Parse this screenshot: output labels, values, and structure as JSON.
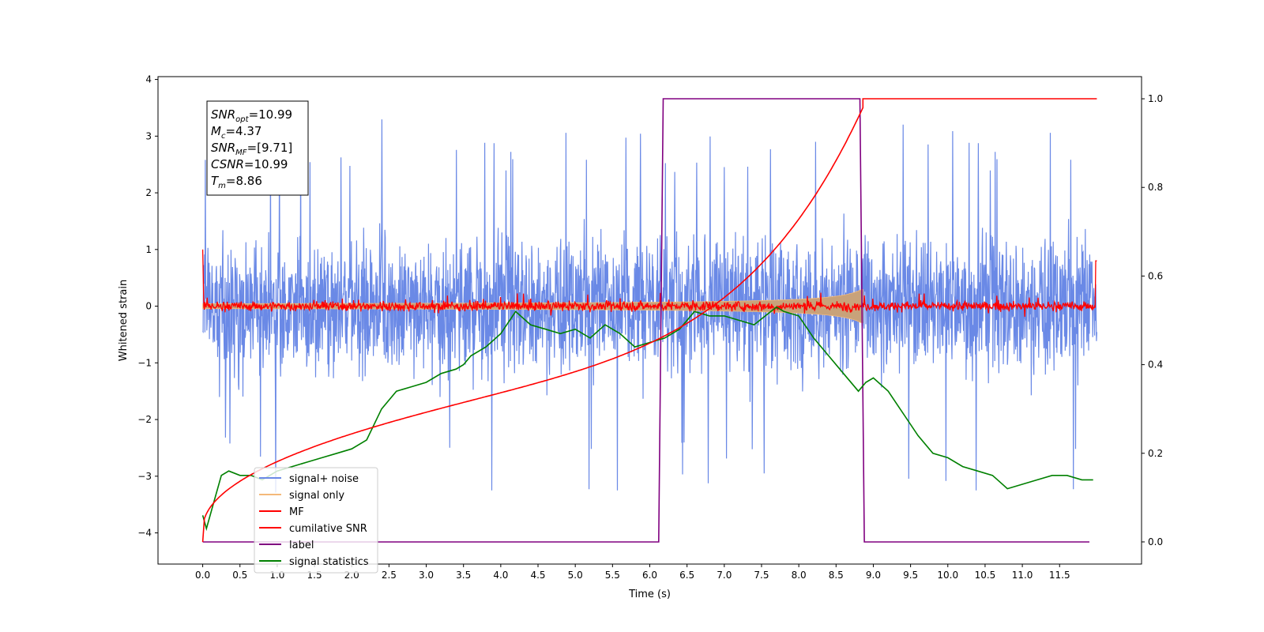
{
  "chart_data": {
    "type": "line",
    "xlabel": "Time (s)",
    "ylabel": "Whitened strain",
    "xlim": [
      -0.6,
      12.6
    ],
    "ylim": [
      -4.55,
      4.05
    ],
    "y2lim": [
      -0.05,
      1.05
    ],
    "x_ticks": [
      "0.0",
      "0.5",
      "1.0",
      "1.5",
      "2.0",
      "2.5",
      "3.0",
      "3.5",
      "4.0",
      "4.5",
      "5.0",
      "5.5",
      "6.0",
      "6.5",
      "7.0",
      "7.5",
      "8.0",
      "8.5",
      "9.0",
      "9.5",
      "10.0",
      "10.5",
      "11.0",
      "11.5"
    ],
    "y_ticks": [
      "4",
      "3",
      "2",
      "1",
      "0",
      "−1",
      "−2",
      "−3",
      "−4"
    ],
    "y2_ticks": [
      "1.0",
      "0.8",
      "0.6",
      "0.4",
      "0.2",
      "0.0"
    ],
    "grid": false,
    "legend_position": "lower-left",
    "annotation": {
      "lines": [
        {
          "name": "SNR",
          "sub": "opt",
          "value": "=10.99"
        },
        {
          "name": "M",
          "sub": "c",
          "value": "=4.37"
        },
        {
          "name": "SNR",
          "sub": "MF",
          "value": "=[9.71]"
        },
        {
          "name": "CSNR",
          "sub": "",
          "value": "=10.99"
        },
        {
          "name": "T",
          "sub": "m",
          "value": "=8.86"
        }
      ]
    },
    "series": [
      {
        "name": "signal+ noise",
        "color": "#6a89e6",
        "axis": "left",
        "description": "noise band roughly −1.5 to 1.5 with spikes to about ±3.4, spanning 0.0–12.0 s"
      },
      {
        "name": "signal only",
        "color": "#f4b97a",
        "axis": "left",
        "description": "chirp envelope growing from ~0.02 to ~0.8 amplitude, ending at 8.86 s"
      },
      {
        "name": "MF",
        "color": "#ff0000",
        "axis": "left",
        "description": "noisy band near 0 (±0.2), spanning 0.0–12.0 s"
      },
      {
        "name": "cumilative SNR",
        "color": "#ff0000",
        "axis": "right",
        "x": [
          0.0,
          0.5,
          1.0,
          1.5,
          2.0,
          2.5,
          3.0,
          3.5,
          4.0,
          4.5,
          5.0,
          5.5,
          6.0,
          6.5,
          7.0,
          7.5,
          8.0,
          8.5,
          8.86,
          9.0,
          10.0,
          11.0,
          12.0
        ],
        "values": [
          0.0,
          0.06,
          0.1,
          0.13,
          0.16,
          0.19,
          0.22,
          0.25,
          0.28,
          0.31,
          0.34,
          0.37,
          0.41,
          0.45,
          0.5,
          0.56,
          0.64,
          0.76,
          1.0,
          1.0,
          1.0,
          1.0,
          1.0
        ]
      },
      {
        "name": "label",
        "color": "#800080",
        "axis": "right",
        "x": [
          0.0,
          6.12,
          6.18,
          8.82,
          8.88,
          11.9
        ],
        "values": [
          0.0,
          0.0,
          1.0,
          1.0,
          0.0,
          0.0
        ]
      },
      {
        "name": "signal statistics",
        "color": "#008000",
        "axis": "right",
        "x": [
          0.0,
          0.05,
          0.15,
          0.25,
          0.35,
          0.5,
          0.65,
          0.8,
          1.0,
          1.2,
          1.4,
          1.6,
          1.8,
          2.0,
          2.2,
          2.4,
          2.6,
          2.8,
          3.0,
          3.2,
          3.4,
          3.5,
          3.6,
          3.8,
          4.0,
          4.2,
          4.4,
          4.6,
          4.8,
          5.0,
          5.2,
          5.4,
          5.6,
          5.8,
          6.0,
          6.2,
          6.4,
          6.6,
          6.8,
          7.0,
          7.2,
          7.4,
          7.7,
          7.8,
          8.0,
          8.2,
          8.4,
          8.6,
          8.8,
          8.9,
          9.0,
          9.2,
          9.4,
          9.6,
          9.8,
          10.0,
          10.2,
          10.4,
          10.6,
          10.8,
          11.0,
          11.2,
          11.4,
          11.6,
          11.8,
          11.95
        ],
        "values": [
          0.06,
          0.03,
          0.09,
          0.15,
          0.16,
          0.15,
          0.15,
          0.14,
          0.16,
          0.17,
          0.18,
          0.19,
          0.2,
          0.21,
          0.23,
          0.3,
          0.34,
          0.35,
          0.36,
          0.38,
          0.39,
          0.4,
          0.42,
          0.44,
          0.47,
          0.52,
          0.49,
          0.48,
          0.47,
          0.48,
          0.46,
          0.49,
          0.47,
          0.44,
          0.45,
          0.46,
          0.48,
          0.52,
          0.51,
          0.51,
          0.5,
          0.49,
          0.53,
          0.52,
          0.51,
          0.46,
          0.42,
          0.38,
          0.34,
          0.36,
          0.37,
          0.34,
          0.29,
          0.24,
          0.2,
          0.19,
          0.17,
          0.16,
          0.15,
          0.12,
          0.13,
          0.14,
          0.15,
          0.15,
          0.14,
          0.14
        ]
      }
    ]
  }
}
